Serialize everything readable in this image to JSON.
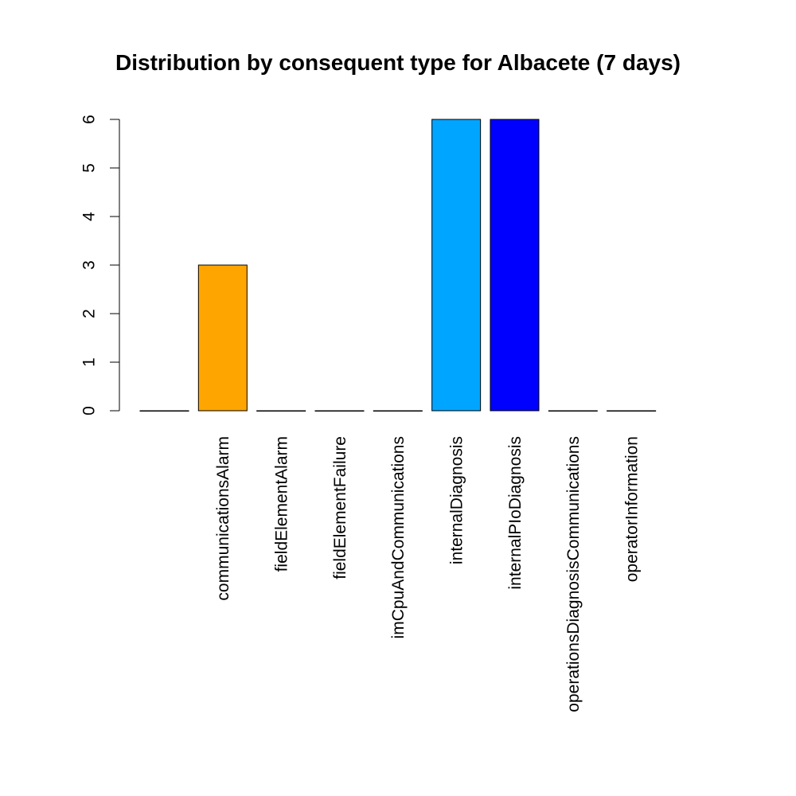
{
  "chart_data": {
    "type": "bar",
    "title": "Distribution by consequent type for Albacete (7 days)",
    "xlabel": "",
    "ylabel": "",
    "categories": [
      "",
      "communicationsAlarm",
      "fieldElementAlarm",
      "fieldElementFailure",
      "imCpuAndCommunications",
      "internalDiagnosis",
      "internalPIoDiagnosis",
      "operationsDiagnosisCommunications",
      "operatorInformation"
    ],
    "values": [
      0,
      3,
      0,
      0,
      0,
      6,
      6,
      0,
      0
    ],
    "colors": [
      "#ffffff",
      "#ffa500",
      "#ffffff",
      "#ffffff",
      "#ffffff",
      "#00a5ff",
      "#0000ff",
      "#ffffff",
      "#ffffff"
    ],
    "ylim": [
      0,
      6
    ],
    "yticks": [
      "0",
      "1",
      "2",
      "3",
      "4",
      "5",
      "6"
    ],
    "grid": false,
    "legend": "none"
  }
}
